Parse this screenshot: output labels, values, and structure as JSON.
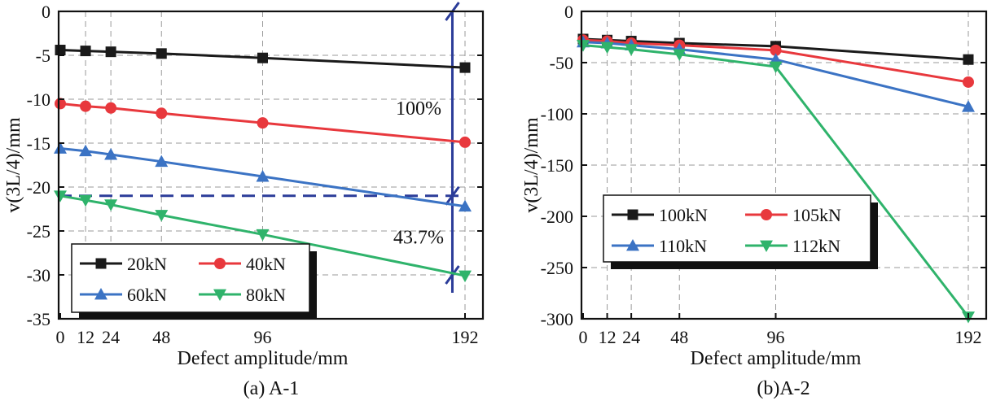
{
  "chart_data": [
    {
      "type": "line",
      "caption": "(a) A-1",
      "xlabel": "Defect amplitude/mm",
      "ylabel": "v(3L/4)/mm",
      "x": [
        0,
        12,
        24,
        48,
        96,
        192
      ],
      "x_tick_labels": [
        "0",
        "12",
        "24",
        "48",
        "96",
        "192"
      ],
      "xlim": [
        0,
        192
      ],
      "ylim": [
        -35,
        0
      ],
      "y_ticks": [
        0,
        -5,
        -10,
        -15,
        -20,
        -25,
        -30,
        -35
      ],
      "grid": true,
      "legend_position": "bottom-left",
      "series": [
        {
          "name": "20kN",
          "color": "#1a1a1a",
          "marker": "square",
          "values": [
            -4.4,
            -4.5,
            -4.6,
            -4.8,
            -5.3,
            -6.4
          ]
        },
        {
          "name": "40kN",
          "color": "#e8383d",
          "marker": "circle",
          "values": [
            -10.5,
            -10.8,
            -11.0,
            -11.6,
            -12.7,
            -14.9
          ]
        },
        {
          "name": "60kN",
          "color": "#3b73c4",
          "marker": "triangle-up",
          "values": [
            -15.6,
            -15.9,
            -16.3,
            -17.1,
            -18.8,
            -22.2
          ]
        },
        {
          "name": "80kN",
          "color": "#2fb36b",
          "marker": "triangle-down",
          "values": [
            -21.0,
            -21.5,
            -22.0,
            -23.2,
            -25.4,
            -30.1
          ]
        }
      ],
      "reference_line": {
        "y": -21.0,
        "color": "#2b3c99"
      },
      "annotations": [
        {
          "text": "100%",
          "x": 170,
          "y": -11.0
        },
        {
          "text": "43.7%",
          "x": 170,
          "y": -25.7
        }
      ],
      "dimension_line": {
        "x": 186,
        "y_from": 0,
        "y_to": -30.0,
        "mid": -21.0
      }
    },
    {
      "type": "line",
      "caption": "(b)A-2",
      "xlabel": "Defect amplitude/mm",
      "ylabel": "v(3L/4)/mm",
      "x": [
        0,
        12,
        24,
        48,
        96,
        192
      ],
      "x_tick_labels": [
        "0",
        "12",
        "24",
        "48",
        "96",
        "192"
      ],
      "xlim": [
        0,
        192
      ],
      "ylim": [
        -300,
        0
      ],
      "y_ticks": [
        0,
        -50,
        -100,
        -150,
        -200,
        -250,
        -300
      ],
      "grid": true,
      "legend_position": "lower-left",
      "series": [
        {
          "name": "100kN",
          "color": "#1a1a1a",
          "marker": "square",
          "values": [
            -27,
            -28,
            -29,
            -31,
            -34,
            -47
          ]
        },
        {
          "name": "105kN",
          "color": "#e8383d",
          "marker": "circle",
          "values": [
            -28,
            -29,
            -31,
            -33,
            -38,
            -69
          ]
        },
        {
          "name": "110kN",
          "color": "#3b73c4",
          "marker": "triangle-up",
          "values": [
            -30,
            -31,
            -33,
            -37,
            -47,
            -93
          ]
        },
        {
          "name": "112kN",
          "color": "#2fb36b",
          "marker": "triangle-down",
          "values": [
            -33,
            -35,
            -37,
            -42,
            -54,
            -298
          ]
        }
      ]
    }
  ]
}
